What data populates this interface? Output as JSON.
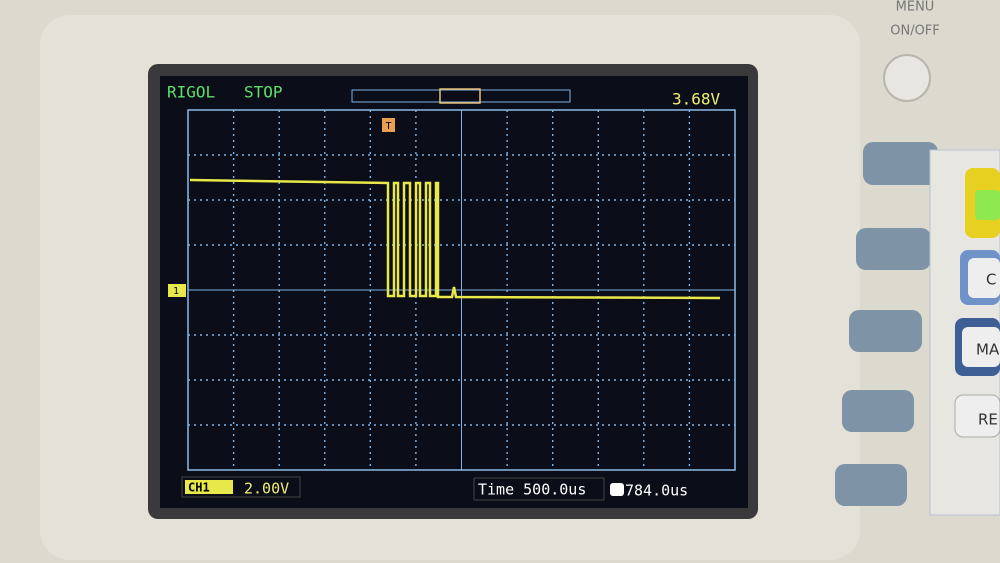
{
  "panel": {
    "power_label": [
      "MENU",
      "ON/OFF"
    ],
    "side_buttons": [
      "C",
      "MA",
      "RE"
    ]
  },
  "screen": {
    "brand": "RIGOL",
    "status": "STOP",
    "trigger_level": "3.68V",
    "channel_marker": "1",
    "trigger_marker": "T",
    "channel": "CH1",
    "volts_per_div": "2.00V",
    "timebase": "Time 500.0us",
    "trigger_offset": "784.0us"
  }
}
